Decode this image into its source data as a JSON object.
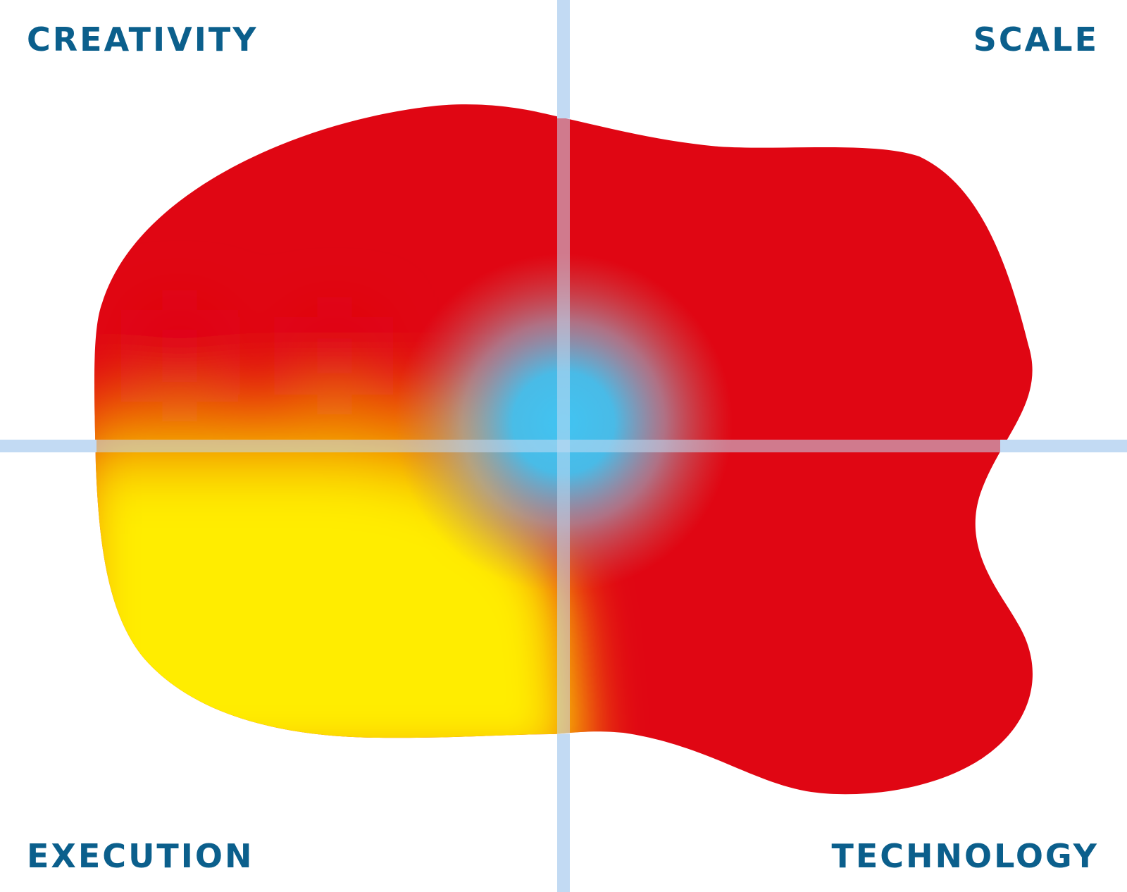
{
  "colors": {
    "label_color": "#0b5f8c",
    "axis_color": "#c2daf3",
    "red": "#e00613",
    "orange": "#f07c00",
    "yellow": "#ffed00",
    "blue": "#41c4f2"
  },
  "quadrants": {
    "top_left": "CREATIVITY",
    "top_right": "SCALE",
    "bottom_left": "EXECUTION",
    "bottom_right": "TECHNOLOGY"
  }
}
